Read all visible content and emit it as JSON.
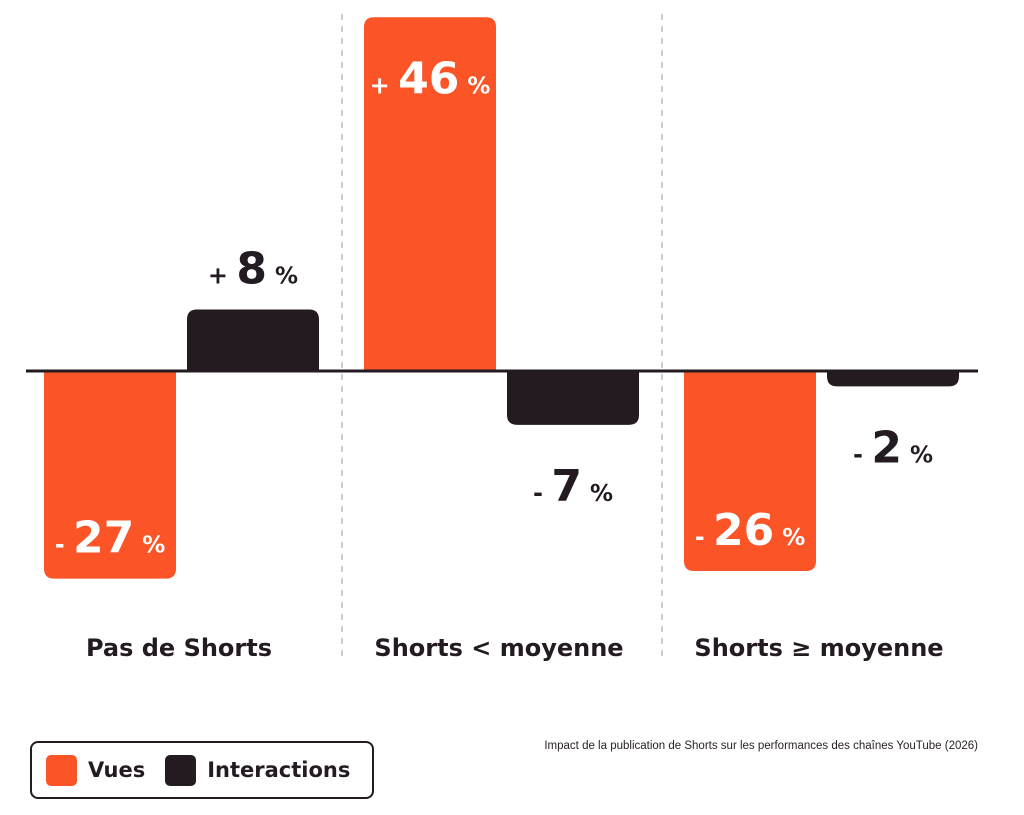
{
  "chart_data": {
    "type": "bar",
    "categories": [
      "Pas de Shorts",
      "Shorts < moyenne",
      "Shorts ≥ moyenne"
    ],
    "series": [
      {
        "name": "Vues",
        "values": [
          -27,
          46,
          -26
        ],
        "labels": [
          "- 27 %",
          "+ 46 %",
          "- 26 %"
        ]
      },
      {
        "name": "Interactions",
        "values": [
          8,
          -7,
          -2
        ],
        "labels": [
          "+ 8 %",
          "- 7 %",
          "- 2 %"
        ]
      }
    ],
    "colors": {
      "Vues": "#fa5427",
      "Interactions": "#231a22",
      "axis": "#231a22",
      "separator": "#bdbdbd"
    },
    "unit": "%",
    "ylim": [
      -27,
      46
    ],
    "legend_position": "bottom-left",
    "grid": false
  },
  "caption": "Impact de la publication de Shorts sur les performances des chaînes YouTube (2026)"
}
